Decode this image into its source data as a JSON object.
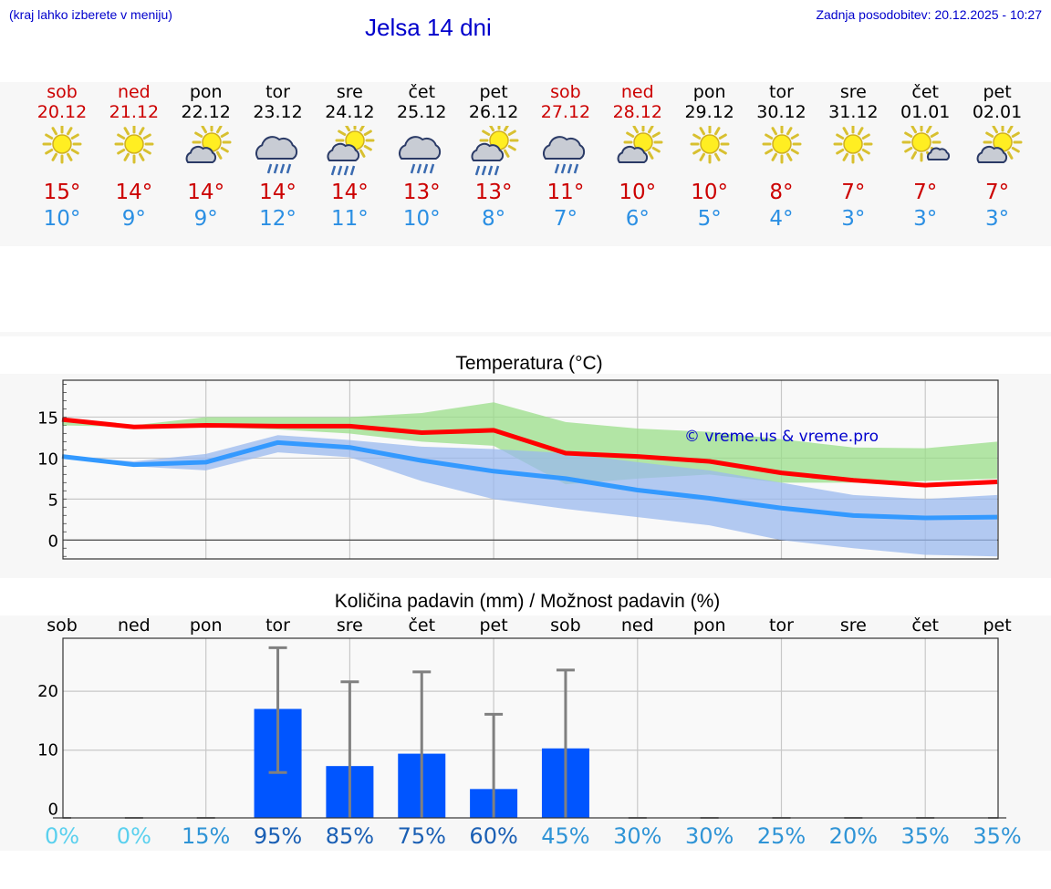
{
  "header": {
    "note": "(kraj lahko izberete v meniju)",
    "title": "Jelsa 14 dni",
    "updated": "Zadnja posodobitev: 20.12.2025 - 10:27"
  },
  "colors": {
    "weekend": "#cc0000",
    "weekday": "#000000",
    "tmax": "#cc0000",
    "tmin": "#2b8fe3",
    "bar": "#0055ff"
  },
  "days": [
    {
      "name": "sob",
      "date": "20.12",
      "weekend": true,
      "icon": "sun-icon",
      "tmax": "15°",
      "tmin": "10°",
      "prob": "0%"
    },
    {
      "name": "ned",
      "date": "21.12",
      "weekend": true,
      "icon": "sun-icon",
      "tmax": "14°",
      "tmin": "9°",
      "prob": "0%"
    },
    {
      "name": "pon",
      "date": "22.12",
      "weekend": false,
      "icon": "sun-cloud-icon",
      "tmax": "14°",
      "tmin": "9°",
      "prob": "15%"
    },
    {
      "name": "tor",
      "date": "23.12",
      "weekend": false,
      "icon": "cloud-rain-icon",
      "tmax": "14°",
      "tmin": "12°",
      "prob": "95%"
    },
    {
      "name": "sre",
      "date": "24.12",
      "weekend": false,
      "icon": "sun-cloud-rain-icon",
      "tmax": "14°",
      "tmin": "11°",
      "prob": "85%"
    },
    {
      "name": "čet",
      "date": "25.12",
      "weekend": false,
      "icon": "cloud-rain-icon",
      "tmax": "13°",
      "tmin": "10°",
      "prob": "75%"
    },
    {
      "name": "pet",
      "date": "26.12",
      "weekend": false,
      "icon": "sun-cloud-rain-icon",
      "tmax": "13°",
      "tmin": "8°",
      "prob": "60%"
    },
    {
      "name": "sob",
      "date": "27.12",
      "weekend": true,
      "icon": "cloud-rain-icon",
      "tmax": "11°",
      "tmin": "7°",
      "prob": "45%"
    },
    {
      "name": "ned",
      "date": "28.12",
      "weekend": true,
      "icon": "sun-cloud-icon",
      "tmax": "10°",
      "tmin": "6°",
      "prob": "30%"
    },
    {
      "name": "pon",
      "date": "29.12",
      "weekend": false,
      "icon": "sun-icon",
      "tmax": "10°",
      "tmin": "5°",
      "prob": "30%"
    },
    {
      "name": "tor",
      "date": "30.12",
      "weekend": false,
      "icon": "sun-icon",
      "tmax": "8°",
      "tmin": "4°",
      "prob": "25%"
    },
    {
      "name": "sre",
      "date": "31.12",
      "weekend": false,
      "icon": "sun-icon",
      "tmax": "7°",
      "tmin": "3°",
      "prob": "20%"
    },
    {
      "name": "čet",
      "date": "01.01",
      "weekend": false,
      "icon": "sun-small-cloud-icon",
      "tmax": "7°",
      "tmin": "3°",
      "prob": "35%"
    },
    {
      "name": "pet",
      "date": "02.01",
      "weekend": false,
      "icon": "sun-cloud-icon",
      "tmax": "7°",
      "tmin": "3°",
      "prob": "35%"
    }
  ],
  "chart_data": [
    {
      "type": "line",
      "title": "Temperatura (°C)",
      "watermark": "© vreme.us & vreme.pro",
      "ylim": [
        -2.3,
        19.5
      ],
      "yticks": [
        0,
        5,
        10,
        15
      ],
      "x": [
        0,
        1,
        2,
        3,
        4,
        5,
        6,
        7,
        8,
        9,
        10,
        11,
        12,
        13
      ],
      "series": [
        {
          "name": "max",
          "color": "#ff0000",
          "values": [
            14.7,
            13.8,
            14.0,
            13.9,
            13.9,
            13.1,
            13.4,
            10.6,
            10.2,
            9.6,
            8.2,
            7.3,
            6.7,
            7.1
          ]
        },
        {
          "name": "min",
          "color": "#3399ff",
          "values": [
            10.2,
            9.2,
            9.5,
            11.9,
            11.3,
            9.7,
            8.4,
            7.5,
            6.1,
            5.1,
            3.9,
            3.0,
            2.7,
            2.8
          ]
        }
      ],
      "bands": [
        {
          "name": "max-range",
          "color": "#99dd88",
          "low": [
            14.0,
            13.8,
            13.8,
            13.5,
            13.0,
            12.0,
            11.5,
            6.8,
            7.5,
            8.0,
            7.0,
            7.0,
            7.2,
            7.5
          ],
          "high": [
            14.7,
            14.0,
            15.0,
            15.0,
            15.0,
            15.5,
            16.8,
            14.4,
            13.6,
            13.2,
            12.3,
            11.3,
            11.2,
            12.0
          ]
        },
        {
          "name": "min-range",
          "color": "#99b8ee",
          "low": [
            10.2,
            9.0,
            8.5,
            10.7,
            10.1,
            7.2,
            5.0,
            3.8,
            2.8,
            1.8,
            0.0,
            -1.0,
            -1.8,
            -2.0
          ],
          "high": [
            10.2,
            9.6,
            10.5,
            12.8,
            12.2,
            11.4,
            11.1,
            10.6,
            9.5,
            8.5,
            7.0,
            5.5,
            5.0,
            5.5
          ]
        }
      ]
    },
    {
      "type": "bar",
      "title": "Količina padavin (mm) / Možnost padavin (%)",
      "ylim": [
        -1.5,
        29
      ],
      "yticks": [
        0,
        10,
        20
      ],
      "values": [
        0,
        0,
        0,
        17.0,
        7.3,
        9.4,
        3.4,
        10.3,
        0,
        0,
        0,
        0,
        0,
        0
      ],
      "err_low": [
        0,
        0,
        0,
        6.2,
        0,
        0,
        0,
        0,
        0,
        0,
        0,
        0,
        0,
        0
      ],
      "err_high": [
        0,
        0,
        0,
        27.4,
        21.6,
        23.3,
        16.1,
        23.6,
        0,
        0,
        0,
        0,
        0,
        0
      ],
      "probabilities": [
        "0%",
        "0%",
        "15%",
        "95%",
        "85%",
        "75%",
        "60%",
        "45%",
        "30%",
        "30%",
        "25%",
        "20%",
        "35%",
        "35%"
      ]
    }
  ]
}
